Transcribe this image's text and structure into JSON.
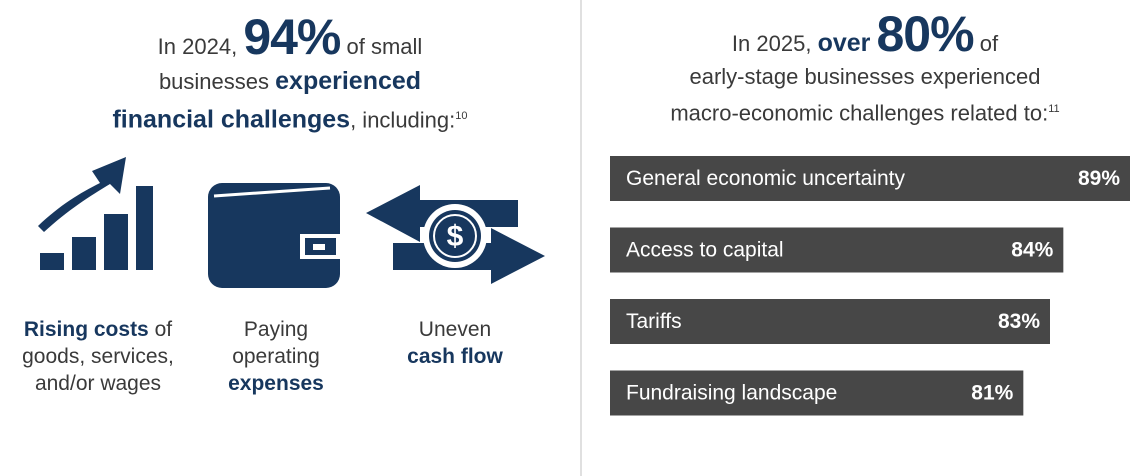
{
  "left": {
    "headline": [
      "In 2024,",
      "94%",
      "of small",
      "businesses",
      "experienced",
      "financial challenges",
      ", including:",
      "10"
    ],
    "items": [
      {
        "bold": "Rising costs",
        "text": "of goods, services, and/or wages"
      },
      {
        "text": "Paying operating",
        "bold": "expenses"
      },
      {
        "text": "Uneven",
        "bold": "cash flow"
      }
    ]
  },
  "chart_data": {
    "type": "bar",
    "orientation": "horizontal",
    "headline": [
      "In 2025,",
      "over",
      "80%",
      "of",
      "early-stage businesses experienced",
      "macro-economic challenges related to:",
      "11"
    ],
    "categories": [
      "General economic uncertainty",
      "Access to capital",
      "Tariffs",
      "Fundraising landscape"
    ],
    "values": [
      89,
      84,
      83,
      81
    ],
    "value_labels": [
      "89%",
      "84%",
      "83%",
      "81%"
    ],
    "color": "#474747",
    "xlim": [
      50,
      89
    ]
  }
}
